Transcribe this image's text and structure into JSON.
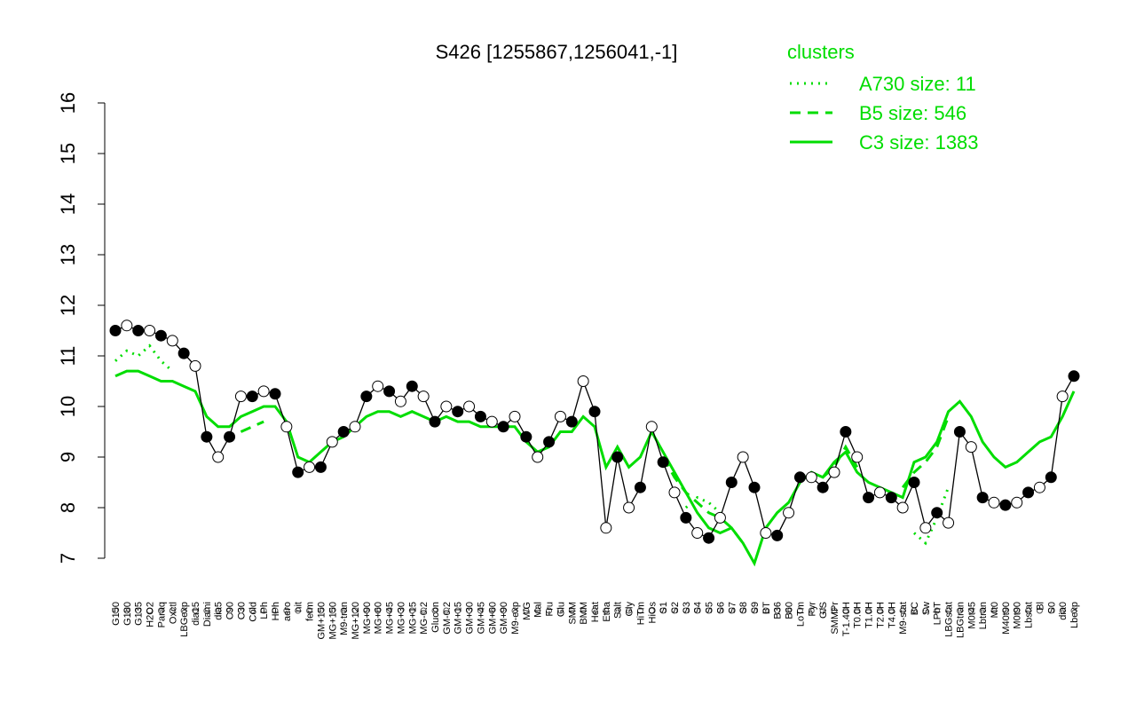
{
  "chart_data": {
    "type": "line",
    "title": "S426 [1255867,1256041,-1]",
    "legend_title": "clusters",
    "color": "#000000",
    "categories": [
      "G150",
      "G180",
      "G135",
      "H2O2",
      "Paraq",
      "Oxctl",
      "LBGexp",
      "dia15",
      "Diami",
      "dia5",
      "C90",
      "C30",
      "Cold",
      "LPh",
      "HPh",
      "aero",
      "nit",
      "ferm",
      "GM+150",
      "MG+150",
      "M9-tran",
      "MG+120",
      "MG+90",
      "MG+60",
      "MG+45",
      "MG+30",
      "MG+15",
      "MG-0.2",
      "Glucon",
      "GM-0.2",
      "GM+15",
      "GM+30",
      "GM+45",
      "GM+60",
      "GM+90",
      "M9-exp",
      "M/G",
      "Mal",
      "Fru",
      "Glu",
      "SMM",
      "BMM",
      "Heat",
      "Etha",
      "Salt",
      "Gly",
      "HiTm",
      "HiOs",
      "S1",
      "S2",
      "S3",
      "S4",
      "S5",
      "S6",
      "S7",
      "S8",
      "S9",
      "BT",
      "B36",
      "B60",
      "LoTm",
      "Pyr",
      "G/S",
      "SMMPr",
      "T-1.40H",
      "T0.0H",
      "T1.0H",
      "T2.0H",
      "T4.0H",
      "M9-stat",
      "BC",
      "Sw",
      "LPhT",
      "LBGstat",
      "LBGtran",
      "M0t45",
      "Lbtran",
      "Mt0",
      "M40t90",
      "M0t90",
      "Lbstat",
      "Bl",
      "S0",
      "dia0",
      "Lbexp"
    ],
    "values": [
      11.5,
      11.6,
      11.5,
      11.5,
      11.4,
      11.3,
      11.05,
      10.8,
      9.4,
      9.0,
      9.4,
      10.2,
      10.2,
      10.3,
      10.25,
      9.6,
      8.7,
      8.8,
      8.8,
      9.3,
      9.5,
      9.6,
      10.2,
      10.4,
      10.3,
      10.1,
      10.4,
      10.2,
      9.7,
      10.0,
      9.9,
      10.0,
      9.8,
      9.7,
      9.6,
      9.8,
      9.4,
      9.0,
      9.3,
      9.8,
      9.7,
      10.5,
      9.9,
      7.6,
      9.0,
      8.0,
      8.4,
      9.6,
      8.9,
      8.3,
      7.8,
      7.5,
      7.4,
      7.8,
      8.5,
      9.0,
      8.4,
      7.5,
      7.45,
      7.9,
      8.6,
      8.6,
      8.4,
      8.7,
      9.5,
      9.0,
      8.2,
      8.3,
      8.2,
      8.0,
      8.5,
      7.6,
      7.9,
      7.7,
      9.5,
      9.2,
      8.2,
      8.1,
      8.05,
      8.1,
      8.3,
      8.4,
      8.6,
      10.2,
      10.6
    ],
    "series": [
      {
        "name": "A730 size: 11",
        "color": "#00dd00",
        "dash": "dotted",
        "values": [
          10.9,
          11.1,
          11.0,
          11.2,
          10.9,
          10.7,
          null,
          null,
          null,
          null,
          null,
          null,
          null,
          null,
          null,
          null,
          null,
          null,
          null,
          null,
          null,
          null,
          null,
          null,
          null,
          null,
          null,
          null,
          null,
          null,
          null,
          null,
          null,
          null,
          null,
          null,
          null,
          null,
          null,
          null,
          null,
          null,
          null,
          null,
          null,
          null,
          null,
          null,
          null,
          null,
          8.0,
          8.2,
          8.1,
          7.9,
          null,
          null,
          null,
          null,
          null,
          null,
          null,
          null,
          null,
          null,
          null,
          null,
          null,
          null,
          null,
          null,
          7.5,
          7.3,
          7.8,
          8.4,
          null,
          null,
          null,
          null,
          null,
          null,
          null,
          null,
          null,
          null,
          null
        ]
      },
      {
        "name": "B5 size: 546",
        "color": "#00dd00",
        "dash": "dashed",
        "values": [
          null,
          null,
          null,
          null,
          null,
          null,
          null,
          null,
          null,
          null,
          null,
          9.5,
          9.6,
          9.7,
          null,
          null,
          null,
          null,
          null,
          null,
          null,
          null,
          null,
          null,
          null,
          null,
          null,
          null,
          null,
          null,
          null,
          null,
          null,
          null,
          null,
          null,
          null,
          null,
          null,
          null,
          null,
          null,
          null,
          null,
          null,
          null,
          null,
          null,
          9.0,
          8.6,
          8.3,
          8.1,
          7.9,
          7.8,
          7.6,
          7.3,
          null,
          null,
          null,
          null,
          null,
          null,
          8.6,
          8.8,
          9.2,
          8.8,
          null,
          null,
          null,
          8.4,
          8.7,
          8.9,
          9.2,
          9.8,
          null,
          null,
          null,
          null,
          null,
          null,
          null,
          null,
          null,
          null,
          null
        ]
      },
      {
        "name": "C3 size: 1383",
        "color": "#00dd00",
        "dash": "solid",
        "values": [
          10.6,
          10.7,
          10.7,
          10.6,
          10.5,
          10.5,
          10.4,
          10.3,
          9.8,
          9.6,
          9.6,
          9.8,
          9.9,
          10.0,
          10.0,
          9.7,
          9.0,
          8.9,
          9.1,
          9.3,
          9.4,
          9.6,
          9.8,
          9.9,
          9.9,
          9.8,
          9.9,
          9.8,
          9.7,
          9.8,
          9.7,
          9.7,
          9.6,
          9.6,
          9.6,
          9.6,
          9.3,
          9.1,
          9.2,
          9.5,
          9.5,
          9.8,
          9.6,
          8.8,
          9.2,
          8.8,
          9.0,
          9.5,
          9.1,
          8.7,
          8.3,
          7.9,
          7.6,
          7.5,
          7.6,
          7.3,
          6.9,
          7.6,
          7.9,
          8.1,
          8.5,
          8.7,
          8.6,
          8.9,
          9.1,
          8.7,
          8.5,
          8.4,
          8.3,
          8.2,
          8.9,
          9.0,
          9.3,
          9.9,
          10.1,
          9.8,
          9.3,
          9.0,
          8.8,
          8.9,
          9.1,
          9.3,
          9.4,
          9.8,
          10.3
        ]
      }
    ],
    "ylim": [
      7,
      16
    ],
    "yticks": [
      7,
      8,
      9,
      10,
      11,
      12,
      13,
      14,
      15,
      16
    ]
  }
}
